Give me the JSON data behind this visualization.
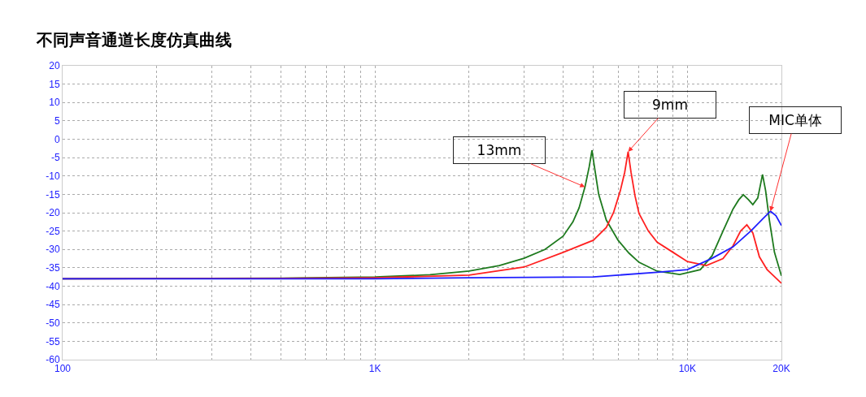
{
  "chart_data": {
    "type": "line",
    "title": "不同声音通道长度仿真曲线",
    "series": [
      {
        "color": "#1e7a1e",
        "x": [
          100,
          500,
          1000,
          1500,
          2000,
          2500,
          3000,
          3500,
          4000,
          4300,
          4500,
          4700,
          4850,
          4950,
          5050,
          5200,
          5500,
          6000,
          6500,
          7000,
          8000,
          9450,
          11000,
          12000,
          13000,
          14000,
          14600,
          15100,
          15700,
          16200,
          16800,
          17400,
          17800,
          18300,
          19000,
          20000
        ],
        "values": [
          -38,
          -37.8,
          -37.5,
          -36.9,
          -35.9,
          -34.4,
          -32.4,
          -30,
          -26.4,
          -22.5,
          -18.7,
          -13,
          -7.5,
          -3,
          -8,
          -15,
          -22,
          -27.5,
          -31,
          -33.5,
          -35.9,
          -36.8,
          -35.5,
          -31.7,
          -25,
          -19,
          -16.5,
          -15.1,
          -16.5,
          -17.8,
          -16,
          -9.6,
          -14,
          -22,
          -30.8,
          -37.2
        ]
      },
      {
        "color": "#ff2020",
        "x": [
          100,
          500,
          1000,
          2000,
          3000,
          4000,
          5000,
          5500,
          5800,
          6100,
          6300,
          6460,
          6600,
          6800,
          7000,
          7500,
          8000,
          9000,
          10000,
          11500,
          13000,
          14000,
          14800,
          15500,
          16200,
          17000,
          18000,
          20000
        ],
        "values": [
          -38,
          -37.9,
          -37.7,
          -37,
          -34.8,
          -30.8,
          -27.5,
          -24,
          -20,
          -14,
          -9,
          -3.4,
          -9,
          -15.5,
          -20.2,
          -25,
          -28,
          -30.8,
          -33.3,
          -34.4,
          -32.5,
          -29,
          -25,
          -23.3,
          -25.5,
          -32,
          -35.5,
          -39.2
        ]
      },
      {
        "color": "#1f1fff",
        "x": [
          100,
          1000,
          2000,
          5000,
          8000,
          10000,
          12000,
          14000,
          16000,
          17500,
          18450,
          19200,
          20000
        ],
        "values": [
          -38,
          -38,
          -37.7,
          -37.5,
          -36.2,
          -35.5,
          -32.4,
          -29.3,
          -24.9,
          -21.5,
          -19.6,
          -20.8,
          -23.5
        ]
      }
    ],
    "annotations": [
      {
        "text": "13mm",
        "x": 4700,
        "y": -13
      },
      {
        "text": "9mm",
        "x": 6460,
        "y": -3.4
      },
      {
        "text": "MIC单体",
        "x": 18450,
        "y": -19.6
      }
    ],
    "xlim": [
      100,
      20000
    ],
    "xticks": [
      100,
      {
        "value": 200,
        "label": null
      },
      {
        "value": 300,
        "label": null
      },
      {
        "value": 400,
        "label": null
      },
      {
        "value": 500,
        "label": null
      },
      {
        "value": 600,
        "label": null
      },
      {
        "value": 700,
        "label": null
      },
      {
        "value": 800,
        "label": null
      },
      {
        "value": 900,
        "label": null
      },
      {
        "value": 1000,
        "label": "1K"
      },
      {
        "value": 2000,
        "label": null
      },
      {
        "value": 3000,
        "label": null
      },
      {
        "value": 4000,
        "label": null
      },
      {
        "value": 5000,
        "label": null
      },
      {
        "value": 6000,
        "label": null
      },
      {
        "value": 7000,
        "label": null
      },
      {
        "value": 8000,
        "label": null
      },
      {
        "value": 9000,
        "label": null
      },
      {
        "value": 10000,
        "label": "10K"
      },
      {
        "value": 20000,
        "label": "20K"
      }
    ],
    "ylim": [
      -60,
      20
    ],
    "yticks": [
      -60,
      -55,
      -50,
      -45,
      -40,
      -35,
      -30,
      -25,
      -20,
      -15,
      -10,
      -5,
      0,
      5,
      10,
      15,
      20
    ],
    "log": "x",
    "grid": true,
    "line_style": "solid",
    "marker": "none"
  }
}
